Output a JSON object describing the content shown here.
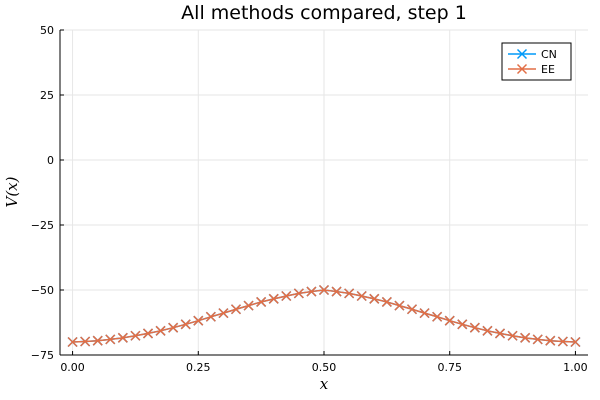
{
  "chart_data": {
    "type": "line",
    "title": "All methods compared, step 1",
    "xlabel": "x",
    "ylabel": "V(x)",
    "xlim": [
      -0.025,
      1.025
    ],
    "ylim": [
      -75,
      50
    ],
    "xticks": [
      0.0,
      0.25,
      0.5,
      0.75,
      1.0
    ],
    "xtick_labels": [
      "0.00",
      "0.25",
      "0.50",
      "0.75",
      "1.00"
    ],
    "yticks": [
      50,
      25,
      0,
      -25,
      -50,
      -75
    ],
    "ytick_labels": [
      "50",
      "25",
      "0",
      "−25",
      "−50",
      "−75"
    ],
    "grid": true,
    "legend_position": "top-right",
    "x": [
      0.0,
      0.025,
      0.05,
      0.075,
      0.1,
      0.125,
      0.15,
      0.175,
      0.2,
      0.225,
      0.25,
      0.275,
      0.3,
      0.325,
      0.35,
      0.375,
      0.4,
      0.425,
      0.45,
      0.475,
      0.5,
      0.525,
      0.55,
      0.575,
      0.6,
      0.625,
      0.65,
      0.675,
      0.7,
      0.725,
      0.75,
      0.775,
      0.8,
      0.825,
      0.85,
      0.875,
      0.9,
      0.925,
      0.95,
      0.975,
      1.0
    ],
    "series": [
      {
        "name": "CN",
        "color": "#009AF9",
        "marker": "x",
        "values": [
          -70.0,
          -69.8,
          -69.5,
          -69.0,
          -68.4,
          -67.6,
          -66.7,
          -65.7,
          -64.5,
          -63.2,
          -61.8,
          -60.3,
          -58.9,
          -57.4,
          -56.0,
          -54.6,
          -53.4,
          -52.3,
          -51.3,
          -50.6,
          -50.0,
          -50.6,
          -51.3,
          -52.3,
          -53.4,
          -54.6,
          -56.0,
          -57.4,
          -58.9,
          -60.3,
          -61.8,
          -63.2,
          -64.5,
          -65.7,
          -66.7,
          -67.6,
          -68.4,
          -69.0,
          -69.5,
          -69.8,
          -70.0
        ]
      },
      {
        "name": "EE",
        "color": "#E26F46",
        "marker": "x",
        "values": [
          -70.0,
          -69.8,
          -69.5,
          -69.0,
          -68.4,
          -67.6,
          -66.7,
          -65.7,
          -64.5,
          -63.2,
          -61.8,
          -60.3,
          -58.9,
          -57.4,
          -56.0,
          -54.6,
          -53.4,
          -52.3,
          -51.3,
          -50.6,
          -50.0,
          -50.6,
          -51.3,
          -52.3,
          -53.4,
          -54.6,
          -56.0,
          -57.4,
          -58.9,
          -60.3,
          -61.8,
          -63.2,
          -64.5,
          -65.7,
          -66.7,
          -67.6,
          -68.4,
          -69.0,
          -69.5,
          -69.8,
          -70.0
        ]
      }
    ]
  }
}
